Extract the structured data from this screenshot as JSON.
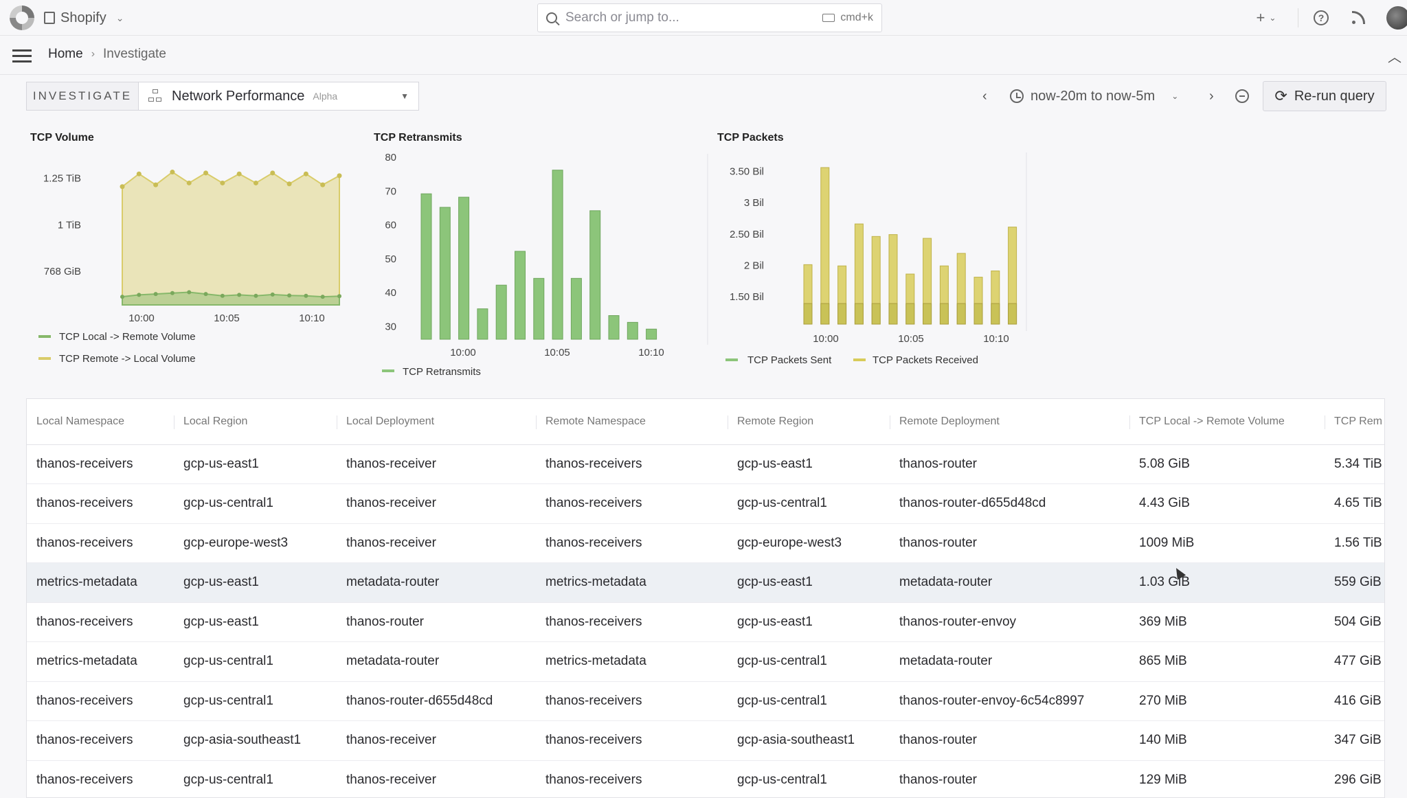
{
  "topbar": {
    "org_name": "Shopify",
    "search_placeholder": "Search or jump to...",
    "search_shortcut": "cmd+k"
  },
  "breadcrumb": {
    "home": "Home",
    "current": "Investigate"
  },
  "toolbar": {
    "investigate_label": "INVESTIGATE",
    "dashboard_name": "Network Performance",
    "dashboard_badge": "Alpha",
    "time_range": "now-20m to now-5m",
    "rerun_label": "Re-run query"
  },
  "chart_data": [
    {
      "type": "area",
      "title": "TCP Volume",
      "x": [
        "09:59",
        "10:00",
        "10:01",
        "10:02",
        "10:03",
        "10:04",
        "10:05",
        "10:06",
        "10:07",
        "10:08",
        "10:09",
        "10:10",
        "10:11",
        "10:12"
      ],
      "x_ticks": [
        "10:00",
        "10:05",
        "10:10"
      ],
      "y_ticks": [
        "768 GiB",
        "1 TiB",
        "1.25 TiB"
      ],
      "series": [
        {
          "name": "TCP Local -> Remote Volume",
          "color": "#86b86a",
          "values_gib": [
            625,
            635,
            640,
            645,
            650,
            640,
            630,
            635,
            630,
            637,
            632,
            630,
            625,
            628
          ]
        },
        {
          "name": "TCP Remote -> Local Volume",
          "color": "#d9cc6a",
          "values_gib": [
            1230,
            1300,
            1240,
            1310,
            1250,
            1305,
            1250,
            1300,
            1250,
            1305,
            1245,
            1300,
            1240,
            1290
          ]
        }
      ]
    },
    {
      "type": "bar",
      "title": "TCP Retransmits",
      "ylim": [
        26,
        80
      ],
      "y_ticks": [
        30,
        40,
        50,
        60,
        70,
        80
      ],
      "x_ticks": [
        "10:00",
        "10:05",
        "10:10"
      ],
      "series": [
        {
          "name": "TCP Retransmits",
          "color": "#8cc57a",
          "values": [
            69,
            65,
            68,
            35,
            42,
            52,
            44,
            76,
            44,
            64,
            33,
            31,
            29
          ]
        }
      ]
    },
    {
      "type": "bar",
      "title": "TCP Packets",
      "y_ticks": [
        "1.50 Bil",
        "2 Bil",
        "2.50 Bil",
        "3 Bil",
        "3.50 Bil"
      ],
      "x_ticks": [
        "10:00",
        "10:05",
        "10:10"
      ],
      "series": [
        {
          "name": "TCP Packets Sent",
          "color": "#c9c257",
          "values_bil": [
            1.2,
            1.2,
            1.2,
            1.2,
            1.2,
            1.2,
            1.2,
            1.2,
            1.2,
            1.2,
            1.2,
            1.2,
            1.2
          ]
        },
        {
          "name": "TCP Packets Received",
          "color": "#d8cc5a",
          "values_bil": [
            2.0,
            3.55,
            1.98,
            2.65,
            2.45,
            2.48,
            1.85,
            2.42,
            1.98,
            2.18,
            1.8,
            1.9,
            2.6
          ]
        }
      ]
    }
  ],
  "table": {
    "columns": [
      "Local Namespace",
      "Local Region",
      "Local Deployment",
      "Remote Namespace",
      "Remote Region",
      "Remote Deployment",
      "TCP Local -> Remote Volume",
      "TCP Rem"
    ],
    "rows": [
      [
        "thanos-receivers",
        "gcp-us-east1",
        "thanos-receiver",
        "thanos-receivers",
        "gcp-us-east1",
        "thanos-router",
        "5.08 GiB",
        "5.34 TiB"
      ],
      [
        "thanos-receivers",
        "gcp-us-central1",
        "thanos-receiver",
        "thanos-receivers",
        "gcp-us-central1",
        "thanos-router-d655d48cd",
        "4.43 GiB",
        "4.65 TiB"
      ],
      [
        "thanos-receivers",
        "gcp-europe-west3",
        "thanos-receiver",
        "thanos-receivers",
        "gcp-europe-west3",
        "thanos-router",
        "1009 MiB",
        "1.56 TiB"
      ],
      [
        "metrics-metadata",
        "gcp-us-east1",
        "metadata-router",
        "metrics-metadata",
        "gcp-us-east1",
        "metadata-router",
        "1.03 GiB",
        "559 GiB"
      ],
      [
        "thanos-receivers",
        "gcp-us-east1",
        "thanos-router",
        "thanos-receivers",
        "gcp-us-east1",
        "thanos-router-envoy",
        "369 MiB",
        "504 GiB"
      ],
      [
        "metrics-metadata",
        "gcp-us-central1",
        "metadata-router",
        "metrics-metadata",
        "gcp-us-central1",
        "metadata-router",
        "865 MiB",
        "477 GiB"
      ],
      [
        "thanos-receivers",
        "gcp-us-central1",
        "thanos-router-d655d48cd",
        "thanos-receivers",
        "gcp-us-central1",
        "thanos-router-envoy-6c54c8997",
        "270 MiB",
        "416 GiB"
      ],
      [
        "thanos-receivers",
        "gcp-asia-southeast1",
        "thanos-receiver",
        "thanos-receivers",
        "gcp-asia-southeast1",
        "thanos-router",
        "140 MiB",
        "347 GiB"
      ],
      [
        "thanos-receivers",
        "gcp-us-central1",
        "thanos-receiver",
        "thanos-receivers",
        "gcp-us-central1",
        "thanos-router",
        "129 MiB",
        "296 GiB"
      ]
    ],
    "highlighted_row": 3
  }
}
